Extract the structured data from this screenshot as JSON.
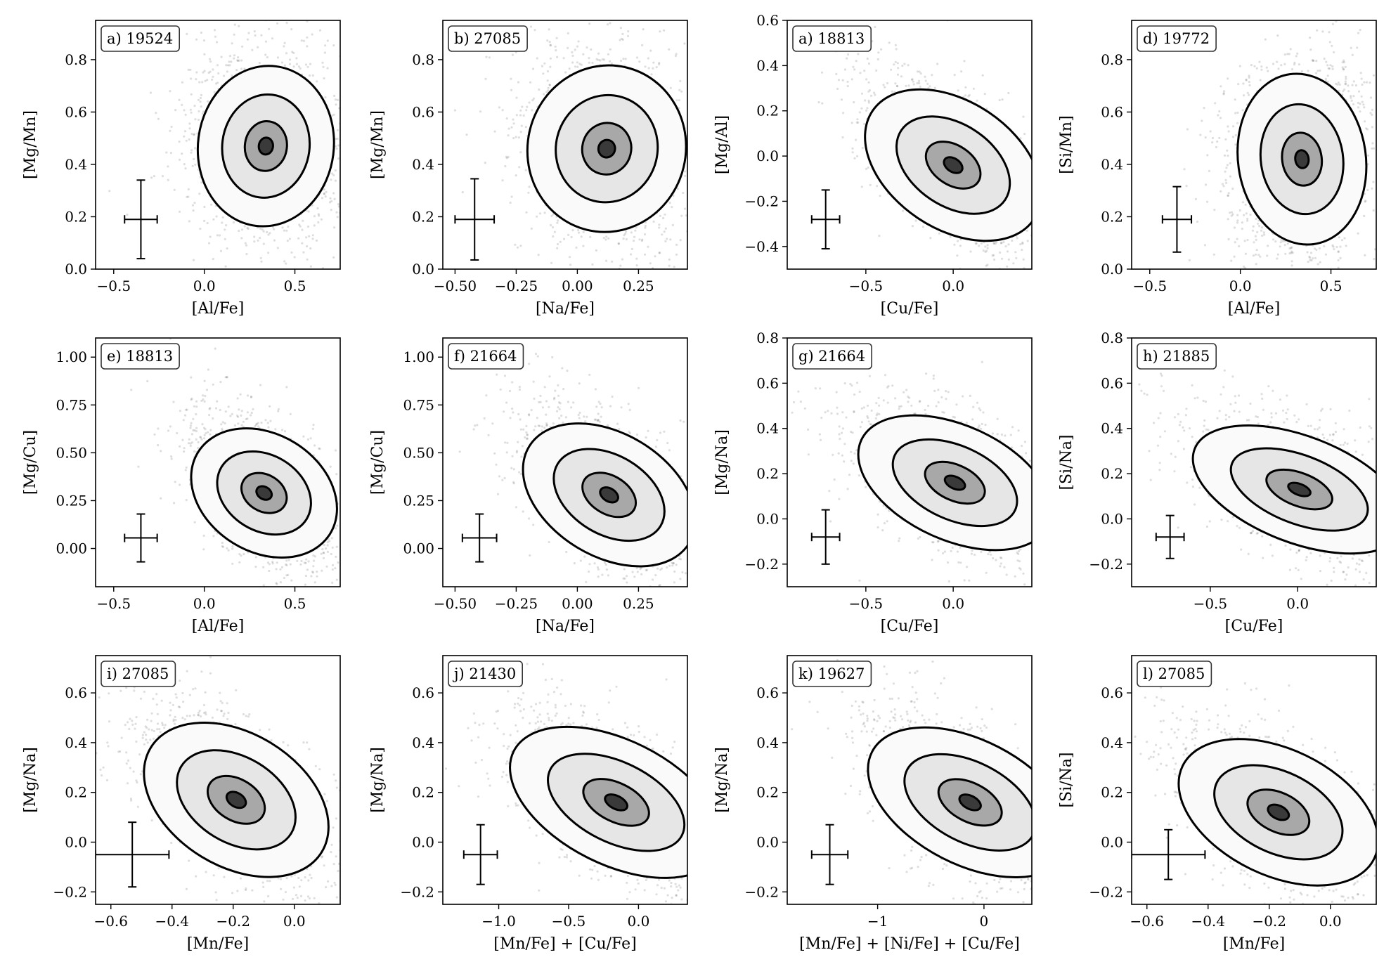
{
  "figure": {
    "type": "scatter-density-contour-grid",
    "rows": 3,
    "cols": 4
  },
  "chart_data": [
    {
      "id": "a",
      "label": "a) 19524",
      "type": "scatter",
      "xlabel": "[Al/Fe]",
      "ylabel": "[Mg/Mn]",
      "xlim": [
        -0.6,
        0.75
      ],
      "ylim": [
        0,
        0.95
      ],
      "xticks": [
        -0.5,
        0.0,
        0.5
      ],
      "xtick_labels": [
        "−0.5",
        "0.0",
        "0.5"
      ],
      "yticks": [
        0.0,
        0.2,
        0.4,
        0.6,
        0.8
      ],
      "ytick_labels": [
        "0.0",
        "0.2",
        "0.4",
        "0.6",
        "0.8"
      ],
      "density_center": [
        0.34,
        0.47
      ],
      "density_sigma": [
        0.17,
        0.15
      ],
      "density_rho": -0.1,
      "error_bar": {
        "x": -0.35,
        "y": 0.19,
        "xerr": 0.09,
        "yerr": 0.15
      }
    },
    {
      "id": "b",
      "label": "b) 27085",
      "type": "scatter",
      "xlabel": "[Na/Fe]",
      "ylabel": "[Mg/Mn]",
      "xlim": [
        -0.55,
        0.45
      ],
      "ylim": [
        0,
        0.95
      ],
      "xticks": [
        -0.5,
        -0.25,
        0.0,
        0.25
      ],
      "xtick_labels": [
        "−0.50",
        "−0.25",
        "0.00",
        "0.25"
      ],
      "yticks": [
        0.0,
        0.2,
        0.4,
        0.6,
        0.8
      ],
      "ytick_labels": [
        "0.0",
        "0.2",
        "0.4",
        "0.6",
        "0.8"
      ],
      "density_center": [
        0.12,
        0.46
      ],
      "density_sigma": [
        0.14,
        0.16
      ],
      "density_rho": -0.2,
      "error_bar": {
        "x": -0.42,
        "y": 0.19,
        "xerr": 0.08,
        "yerr": 0.155
      }
    },
    {
      "id": "c",
      "label": "a) 18813",
      "type": "scatter",
      "xlabel": "[Cu/Fe]",
      "ylabel": "[Mg/Al]",
      "xlim": [
        -0.95,
        0.45
      ],
      "ylim": [
        -0.5,
        0.6
      ],
      "xticks": [
        -0.5,
        0.0
      ],
      "xtick_labels": [
        "−0.5",
        "0.0"
      ],
      "yticks": [
        -0.4,
        -0.2,
        0.0,
        0.2,
        0.4,
        0.6
      ],
      "ytick_labels": [
        "−0.4",
        "−0.2",
        "0.0",
        "0.2",
        "0.4",
        "0.6"
      ],
      "density_center": [
        0.0,
        -0.04
      ],
      "density_sigma": [
        0.2,
        0.16
      ],
      "density_rho": -0.65,
      "error_bar": {
        "x": -0.73,
        "y": -0.28,
        "xerr": 0.08,
        "yerr": 0.13
      }
    },
    {
      "id": "d",
      "label": "d) 19772",
      "type": "scatter",
      "xlabel": "[Al/Fe]",
      "ylabel": "[Si/Mn]",
      "xlim": [
        -0.6,
        0.75
      ],
      "ylim": [
        0,
        0.95
      ],
      "xticks": [
        -0.5,
        0.0,
        0.5
      ],
      "xtick_labels": [
        "−0.5",
        "0.0",
        "0.5"
      ],
      "yticks": [
        0.0,
        0.2,
        0.4,
        0.6,
        0.8
      ],
      "ytick_labels": [
        "0.0",
        "0.2",
        "0.4",
        "0.6",
        "0.8"
      ],
      "density_center": [
        0.34,
        0.42
      ],
      "density_sigma": [
        0.16,
        0.16
      ],
      "density_rho": 0.1,
      "error_bar": {
        "x": -0.35,
        "y": 0.19,
        "xerr": 0.08,
        "yerr": 0.125
      }
    },
    {
      "id": "e",
      "label": "e) 18813",
      "type": "scatter",
      "xlabel": "[Al/Fe]",
      "ylabel": "[Mg/Cu]",
      "xlim": [
        -0.6,
        0.75
      ],
      "ylim": [
        -0.2,
        1.1
      ],
      "xticks": [
        -0.5,
        0.0,
        0.5
      ],
      "xtick_labels": [
        "−0.5",
        "0.0",
        "0.5"
      ],
      "yticks": [
        0.0,
        0.25,
        0.5,
        0.75,
        1.0
      ],
      "ytick_labels": [
        "0.00",
        "0.25",
        "0.50",
        "0.75",
        "1.00"
      ],
      "density_center": [
        0.33,
        0.29
      ],
      "density_sigma": [
        0.16,
        0.17
      ],
      "density_rho": -0.55,
      "error_bar": {
        "x": -0.35,
        "y": 0.055,
        "xerr": 0.09,
        "yerr": 0.125
      }
    },
    {
      "id": "f",
      "label": "f) 21664",
      "type": "scatter",
      "xlabel": "[Na/Fe]",
      "ylabel": "[Mg/Cu]",
      "xlim": [
        -0.55,
        0.45
      ],
      "ylim": [
        -0.2,
        1.1
      ],
      "xticks": [
        -0.5,
        -0.25,
        0.0,
        0.25
      ],
      "xtick_labels": [
        "−0.50",
        "−0.25",
        "0.00",
        "0.25"
      ],
      "yticks": [
        0.0,
        0.25,
        0.5,
        0.75,
        1.0
      ],
      "ytick_labels": [
        "0.00",
        "0.25",
        "0.50",
        "0.75",
        "1.00"
      ],
      "density_center": [
        0.13,
        0.28
      ],
      "density_sigma": [
        0.14,
        0.18
      ],
      "density_rho": -0.6,
      "error_bar": {
        "x": -0.4,
        "y": 0.055,
        "xerr": 0.07,
        "yerr": 0.125
      }
    },
    {
      "id": "g",
      "label": "g) 21664",
      "type": "scatter",
      "xlabel": "[Cu/Fe]",
      "ylabel": "[Mg/Na]",
      "xlim": [
        -0.95,
        0.45
      ],
      "ylim": [
        -0.3,
        0.8
      ],
      "xticks": [
        -0.5,
        0.0
      ],
      "xtick_labels": [
        "−0.5",
        "0.0"
      ],
      "yticks": [
        -0.2,
        0.0,
        0.2,
        0.4,
        0.6,
        0.8
      ],
      "ytick_labels": [
        "−0.2",
        "0.0",
        "0.2",
        "0.4",
        "0.6",
        "0.8"
      ],
      "density_center": [
        0.01,
        0.16
      ],
      "density_sigma": [
        0.22,
        0.14
      ],
      "density_rho": -0.55,
      "error_bar": {
        "x": -0.73,
        "y": -0.08,
        "xerr": 0.08,
        "yerr": 0.12
      }
    },
    {
      "id": "h",
      "label": "h) 21885",
      "type": "scatter",
      "xlabel": "[Cu/Fe]",
      "ylabel": "[Si/Na]",
      "xlim": [
        -0.95,
        0.45
      ],
      "ylim": [
        -0.3,
        0.8
      ],
      "xticks": [
        -0.5,
        0.0
      ],
      "xtick_labels": [
        "−0.5",
        "0.0"
      ],
      "yticks": [
        -0.2,
        0.0,
        0.2,
        0.4,
        0.6,
        0.8
      ],
      "ytick_labels": [
        "−0.2",
        "0.0",
        "0.2",
        "0.4",
        "0.6",
        "0.8"
      ],
      "density_center": [
        0.01,
        0.13
      ],
      "density_sigma": [
        0.24,
        0.13
      ],
      "density_rho": -0.55,
      "error_bar": {
        "x": -0.73,
        "y": -0.08,
        "xerr": 0.08,
        "yerr": 0.095
      }
    },
    {
      "id": "i",
      "label": "i) 27085",
      "type": "scatter",
      "xlabel": "[Mn/Fe]",
      "ylabel": "[Mg/Na]",
      "xlim": [
        -0.65,
        0.15
      ],
      "ylim": [
        -0.25,
        0.75
      ],
      "xticks": [
        -0.6,
        -0.4,
        -0.2,
        0.0
      ],
      "xtick_labels": [
        "−0.6",
        "−0.4",
        "−0.2",
        "0.0"
      ],
      "yticks": [
        -0.2,
        0.0,
        0.2,
        0.4,
        0.6
      ],
      "ytick_labels": [
        "−0.2",
        "0.0",
        "0.2",
        "0.4",
        "0.6"
      ],
      "density_center": [
        -0.19,
        0.17
      ],
      "density_sigma": [
        0.12,
        0.15
      ],
      "density_rho": -0.6,
      "error_bar": {
        "x": -0.53,
        "y": -0.05,
        "xerr": 0.12,
        "yerr": 0.13
      }
    },
    {
      "id": "j",
      "label": "j) 21430",
      "type": "scatter",
      "xlabel": "[Mn/Fe] + [Cu/Fe]",
      "ylabel": "[Mg/Na]",
      "xlim": [
        -1.4,
        0.35
      ],
      "ylim": [
        -0.25,
        0.75
      ],
      "xticks": [
        -1.0,
        -0.5,
        0.0
      ],
      "xtick_labels": [
        "−1.0",
        "−0.5",
        "0.0"
      ],
      "yticks": [
        -0.2,
        0.0,
        0.2,
        0.4,
        0.6
      ],
      "ytick_labels": [
        "−0.2",
        "0.0",
        "0.2",
        "0.4",
        "0.6"
      ],
      "density_center": [
        -0.16,
        0.16
      ],
      "density_sigma": [
        0.3,
        0.14
      ],
      "density_rho": -0.6,
      "error_bar": {
        "x": -1.13,
        "y": -0.05,
        "xerr": 0.12,
        "yerr": 0.12
      }
    },
    {
      "id": "k",
      "label": "k) 19627",
      "type": "scatter",
      "xlabel": "[Mn/Fe] + [Ni/Fe] + [Cu/Fe]",
      "ylabel": "[Mg/Na]",
      "xlim": [
        -1.85,
        0.45
      ],
      "ylim": [
        -0.25,
        0.75
      ],
      "xticks": [
        -1.0,
        0.0
      ],
      "xtick_labels": [
        "−1",
        "0"
      ],
      "yticks": [
        -0.2,
        0.0,
        0.2,
        0.4,
        0.6
      ],
      "ytick_labels": [
        "−0.2",
        "0.0",
        "0.2",
        "0.4",
        "0.6"
      ],
      "density_center": [
        -0.13,
        0.16
      ],
      "density_sigma": [
        0.38,
        0.14
      ],
      "density_rho": -0.6,
      "error_bar": {
        "x": -1.45,
        "y": -0.05,
        "xerr": 0.17,
        "yerr": 0.12
      }
    },
    {
      "id": "l",
      "label": "l) 27085",
      "type": "scatter",
      "xlabel": "[Mn/Fe]",
      "ylabel": "[Si/Na]",
      "xlim": [
        -0.65,
        0.15
      ],
      "ylim": [
        -0.25,
        0.75
      ],
      "xticks": [
        -0.6,
        -0.4,
        -0.2,
        0.0
      ],
      "xtick_labels": [
        "−0.6",
        "−0.4",
        "−0.2",
        "0.0"
      ],
      "yticks": [
        -0.2,
        0.0,
        0.2,
        0.4,
        0.6
      ],
      "ytick_labels": [
        "−0.2",
        "0.0",
        "0.2",
        "0.4",
        "0.6"
      ],
      "density_center": [
        -0.17,
        0.12
      ],
      "density_sigma": [
        0.13,
        0.14
      ],
      "density_rho": -0.55,
      "error_bar": {
        "x": -0.53,
        "y": -0.05,
        "xerr": 0.12,
        "yerr": 0.1
      }
    }
  ]
}
